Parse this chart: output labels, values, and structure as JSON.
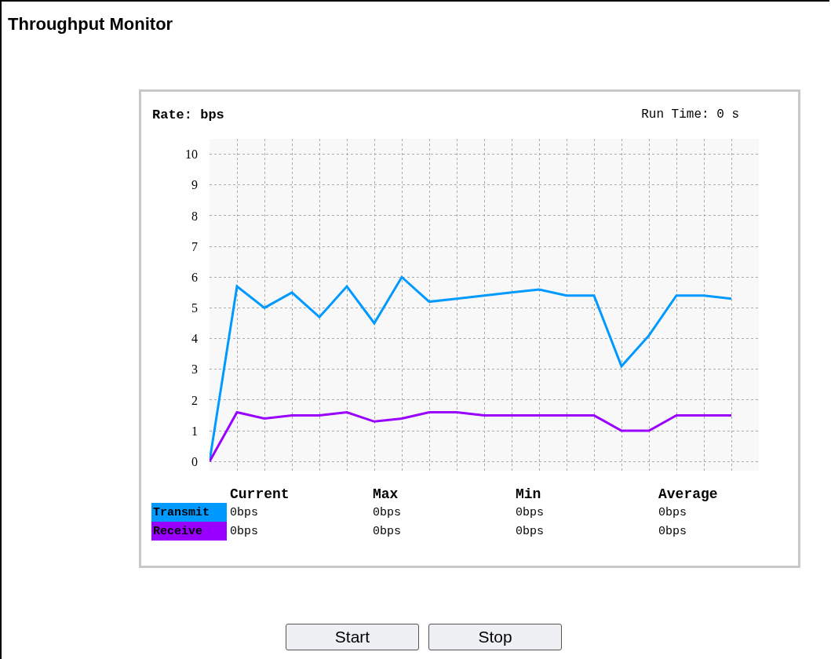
{
  "chart_data": {
    "type": "line",
    "title": "Throughput Monitor",
    "ylabel": "Rate: bps",
    "annotations": [
      "Run Time: 0 s",
      "Current",
      "Max",
      "Min",
      "Average",
      "0bps",
      "0bps",
      "0bps",
      "0bps",
      "0bps",
      "0bps",
      "0bps",
      "0bps",
      "Start",
      "Stop"
    ],
    "categories": [
      null,
      null,
      null,
      null,
      null,
      null,
      null,
      null,
      null,
      null,
      null,
      null,
      null,
      null,
      null,
      null,
      null,
      null,
      null,
      null
    ],
    "series": [
      {
        "name": "Transmit",
        "color": "#0099ff",
        "values": [
          0,
          5.7,
          5.0,
          5.5,
          4.7,
          5.7,
          4.5,
          6.0,
          5.2,
          5.3,
          5.4,
          5.5,
          5.6,
          5.4,
          5.4,
          3.1,
          4.1,
          5.4,
          5.4,
          5.3
        ]
      },
      {
        "name": "Receive",
        "color": "#9900ff",
        "values": [
          0,
          1.6,
          1.4,
          1.5,
          1.5,
          1.6,
          1.3,
          1.4,
          1.6,
          1.6,
          1.5,
          1.5,
          1.5,
          1.5,
          1.5,
          1.0,
          1.0,
          1.5,
          1.5,
          1.5
        ]
      }
    ],
    "ylim": [
      -0.3,
      10.5
    ],
    "yticks": [
      0,
      1,
      2,
      3,
      4,
      5,
      6,
      7,
      8,
      9,
      10
    ],
    "grid": true,
    "legend": "bottom left",
    "tick_labels": "y",
    "marker": "none",
    "line_style": "solid"
  }
}
